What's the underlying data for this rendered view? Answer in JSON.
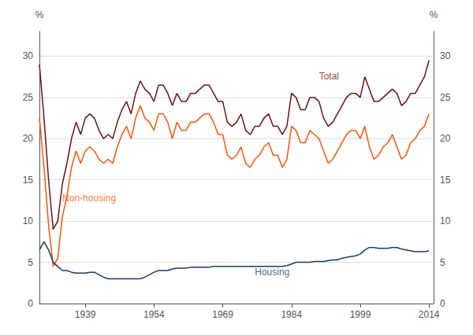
{
  "chart_data": {
    "type": "line",
    "ylabel": "%",
    "y2label": "%",
    "x": [
      1929,
      1930,
      1931,
      1932,
      1933,
      1934,
      1935,
      1936,
      1937,
      1938,
      1939,
      1940,
      1941,
      1942,
      1943,
      1944,
      1945,
      1946,
      1947,
      1948,
      1949,
      1950,
      1951,
      1952,
      1953,
      1954,
      1955,
      1956,
      1957,
      1958,
      1959,
      1960,
      1961,
      1962,
      1963,
      1964,
      1965,
      1966,
      1967,
      1968,
      1969,
      1970,
      1971,
      1972,
      1973,
      1974,
      1975,
      1976,
      1977,
      1978,
      1979,
      1980,
      1981,
      1982,
      1983,
      1984,
      1985,
      1986,
      1987,
      1988,
      1989,
      1990,
      1991,
      1992,
      1993,
      1994,
      1995,
      1996,
      1997,
      1998,
      1999,
      2000,
      2001,
      2002,
      2003,
      2004,
      2005,
      2006,
      2007,
      2008,
      2009,
      2010,
      2011,
      2012,
      2013,
      2014
    ],
    "series": [
      {
        "name": "Total",
        "color": "#6B1414",
        "values": [
          29.0,
          22.5,
          15.0,
          9.0,
          10.0,
          14.5,
          17.0,
          20.0,
          22.0,
          20.5,
          22.5,
          23.0,
          22.5,
          21.0,
          20.0,
          20.5,
          20.0,
          22.0,
          23.5,
          24.5,
          23.0,
          25.5,
          27.0,
          26.0,
          25.5,
          24.5,
          26.5,
          26.5,
          25.5,
          24.0,
          25.5,
          24.5,
          24.5,
          25.5,
          25.5,
          26.0,
          26.5,
          26.5,
          25.5,
          24.5,
          24.5,
          22.0,
          21.5,
          22.0,
          23.0,
          21.0,
          20.5,
          21.5,
          21.5,
          22.5,
          23.0,
          21.5,
          21.5,
          20.5,
          21.5,
          25.5,
          25.0,
          23.5,
          23.5,
          25.0,
          25.0,
          24.5,
          22.5,
          21.5,
          22.0,
          23.0,
          24.0,
          25.0,
          25.5,
          25.5,
          25.0,
          27.5,
          26.0,
          24.5,
          24.5,
          25.0,
          25.5,
          26.0,
          25.5,
          24.0,
          24.5,
          25.5,
          25.5,
          26.5,
          27.5,
          29.5
        ]
      },
      {
        "name": "Non-housing",
        "color": "#FF5500",
        "values": [
          22.5,
          16.5,
          9.5,
          4.5,
          5.5,
          10.5,
          13.0,
          16.5,
          18.5,
          17.0,
          18.5,
          19.0,
          18.5,
          17.5,
          17.0,
          17.5,
          17.0,
          19.0,
          20.5,
          21.5,
          20.0,
          22.5,
          24.0,
          22.5,
          22.0,
          21.0,
          23.0,
          23.0,
          22.0,
          20.0,
          22.0,
          21.0,
          21.0,
          22.0,
          22.0,
          22.5,
          23.0,
          23.0,
          22.0,
          20.5,
          20.5,
          18.0,
          17.5,
          18.0,
          19.0,
          17.0,
          16.5,
          17.5,
          18.0,
          19.0,
          19.5,
          18.0,
          18.0,
          16.5,
          17.5,
          21.5,
          21.0,
          19.5,
          19.5,
          21.0,
          20.5,
          20.0,
          18.5,
          17.0,
          17.5,
          18.5,
          19.5,
          20.5,
          21.0,
          21.0,
          20.0,
          21.5,
          19.0,
          17.5,
          18.0,
          19.0,
          19.5,
          20.5,
          19.0,
          17.5,
          18.0,
          19.5,
          20.0,
          21.0,
          21.5,
          23.0
        ]
      },
      {
        "name": "Housing",
        "color": "#1A3A6B",
        "values": [
          6.5,
          7.5,
          6.5,
          5.0,
          4.5,
          4.0,
          4.0,
          3.8,
          3.7,
          3.7,
          3.7,
          3.8,
          3.8,
          3.5,
          3.2,
          3.0,
          3.0,
          3.0,
          3.0,
          3.0,
          3.0,
          3.0,
          3.0,
          3.2,
          3.5,
          3.8,
          4.0,
          4.0,
          4.0,
          4.2,
          4.3,
          4.3,
          4.3,
          4.4,
          4.4,
          4.4,
          4.4,
          4.4,
          4.5,
          4.5,
          4.5,
          4.5,
          4.5,
          4.5,
          4.5,
          4.5,
          4.5,
          4.5,
          4.5,
          4.5,
          4.5,
          4.5,
          4.5,
          4.5,
          4.6,
          4.8,
          5.0,
          5.0,
          5.0,
          5.0,
          5.1,
          5.1,
          5.1,
          5.2,
          5.3,
          5.3,
          5.5,
          5.6,
          5.7,
          5.8,
          6.0,
          6.5,
          6.8,
          6.8,
          6.7,
          6.7,
          6.7,
          6.8,
          6.8,
          6.6,
          6.5,
          6.4,
          6.3,
          6.3,
          6.3,
          6.4
        ]
      }
    ],
    "annotations": [
      {
        "text": "Total",
        "x": 1990,
        "y": 27.0,
        "color": "#6B1414"
      },
      {
        "text": "Non-housing",
        "x": 1934,
        "y": 12.2,
        "color": "#FF5500"
      },
      {
        "text": "Housing",
        "x": 1976,
        "y": 3.2,
        "color": "#1A3A6B"
      }
    ],
    "xlim": [
      1929,
      2015
    ],
    "xticks": [
      1939,
      1954,
      1969,
      1984,
      1999,
      2014
    ],
    "ylim": [
      0,
      33
    ],
    "yticks": [
      0,
      5,
      10,
      15,
      20,
      25,
      30
    ],
    "y2lim": [
      0,
      33
    ],
    "y2ticks": [
      0,
      5,
      10,
      15,
      20,
      25,
      30
    ],
    "grid": true
  }
}
